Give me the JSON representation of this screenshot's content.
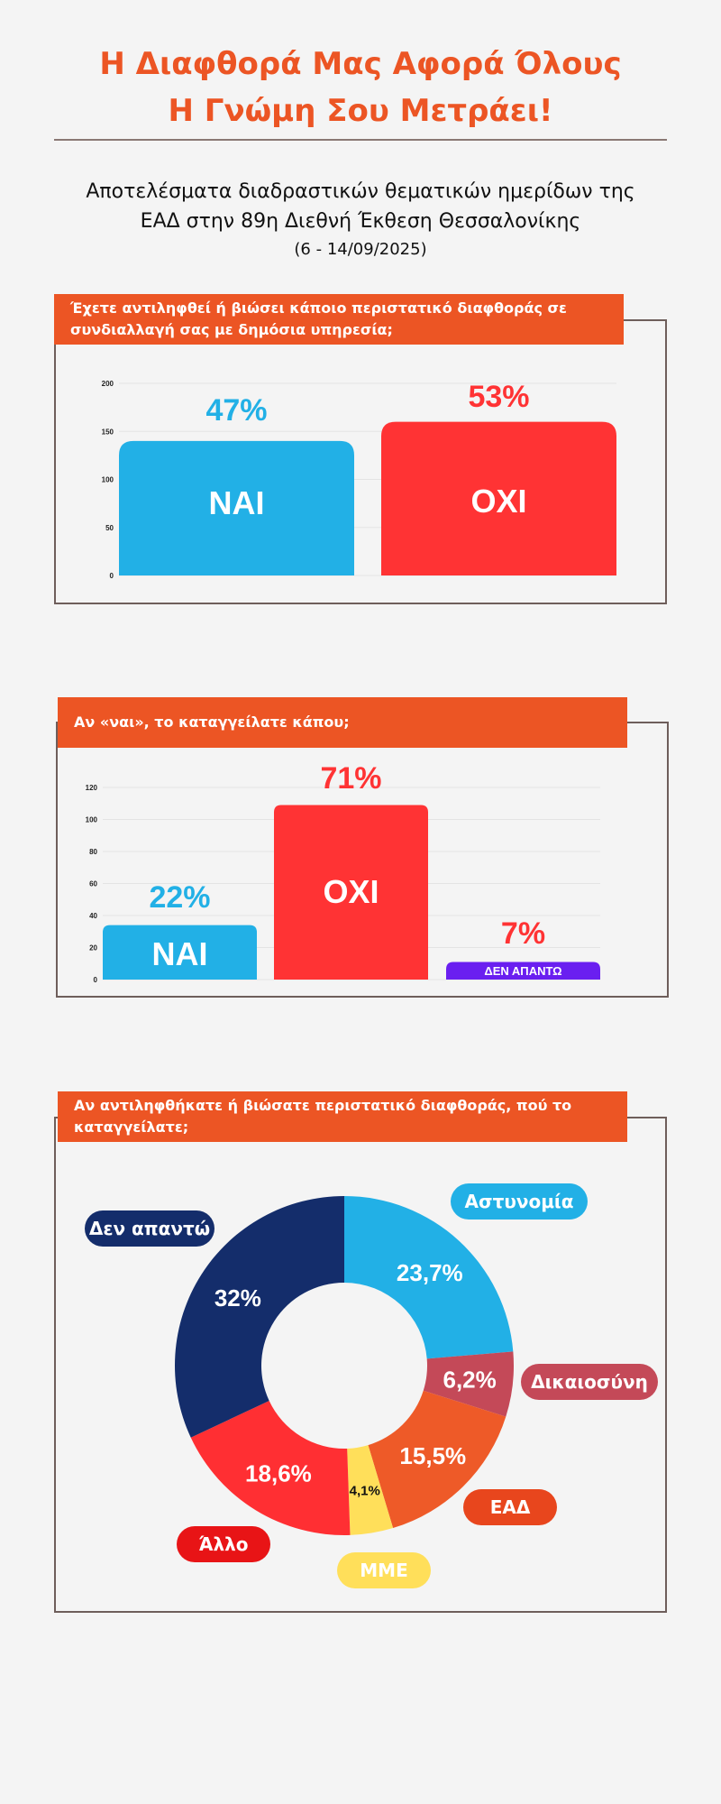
{
  "header": {
    "title_line1": "Η Διαφθορά Μας Αφορά Όλους",
    "title_line2": "Η Γνώμη Σου Μετράει!",
    "subtitle_line1": "Αποτελέσματα διαδραστικών θεματικών ημερίδων της",
    "subtitle_line2": "ΕΑΔ στην 89η Διεθνή Έκθεση Θεσσαλονίκης",
    "dates": "(6 - 14/09/2025)"
  },
  "questions": {
    "q1": "Έχετε αντιληφθεί ή βιώσει κάποιο περιστατικό διαφθοράς σε συνδιαλλαγή σας με δημόσια υπηρεσία;",
    "q2": "Αν «ναι», το καταγγείλατε κάπου;",
    "q3": "Αν αντιληφθήκατε ή βιώσατε περιστατικό διαφθοράς, πού το καταγγείλατε;"
  },
  "chart_data": [
    {
      "type": "bar",
      "title": "Έχετε αντιληφθεί ή βιώσει κάποιο περιστατικό διαφθοράς σε συνδιαλλαγή σας με δημόσια υπηρεσία;",
      "categories": [
        "ΝΑΙ",
        "ΟΧΙ"
      ],
      "values": [
        140,
        160
      ],
      "percent_labels": [
        "47%",
        "53%"
      ],
      "colors": [
        "#22b0e6",
        "#ff3334"
      ],
      "yticks": [
        "0",
        "50",
        "100",
        "150",
        "200"
      ],
      "ylim": [
        0,
        200
      ]
    },
    {
      "type": "bar",
      "title": "Αν «ναι», το καταγγείλατε κάπου;",
      "categories": [
        "ΝΑΙ",
        "ΟΧΙ",
        "ΔΕΝ ΑΠΑΝΤΩ"
      ],
      "values": [
        34,
        109,
        11
      ],
      "percent_labels": [
        "22%",
        "71%",
        "7%"
      ],
      "colors": [
        "#22b0e6",
        "#ff3334",
        "#6a1ff0"
      ],
      "yticks": [
        "0",
        "20",
        "40",
        "60",
        "80",
        "100",
        "120"
      ],
      "ylim": [
        0,
        120
      ]
    },
    {
      "type": "pie",
      "title": "Αν αντιληφθήκατε ή βιώσατε περιστατικό διαφθοράς, πού το καταγγείλατε;",
      "labels": [
        "Αστυνομία",
        "Δικαιοσύνη",
        "ΕΑΔ",
        "ΜΜΕ",
        "Άλλο",
        "Δεν απαντώ"
      ],
      "values": [
        23.7,
        6.2,
        15.5,
        4.1,
        18.6,
        32
      ],
      "value_labels": [
        "23,7%",
        "6,2%",
        "15,5%",
        "4,1%",
        "18,6%",
        "32%"
      ],
      "colors": [
        "#22b0e6",
        "#c44958",
        "#ee5a28",
        "#ffdf5a",
        "#ff2f33",
        "#142d6b"
      ]
    }
  ]
}
